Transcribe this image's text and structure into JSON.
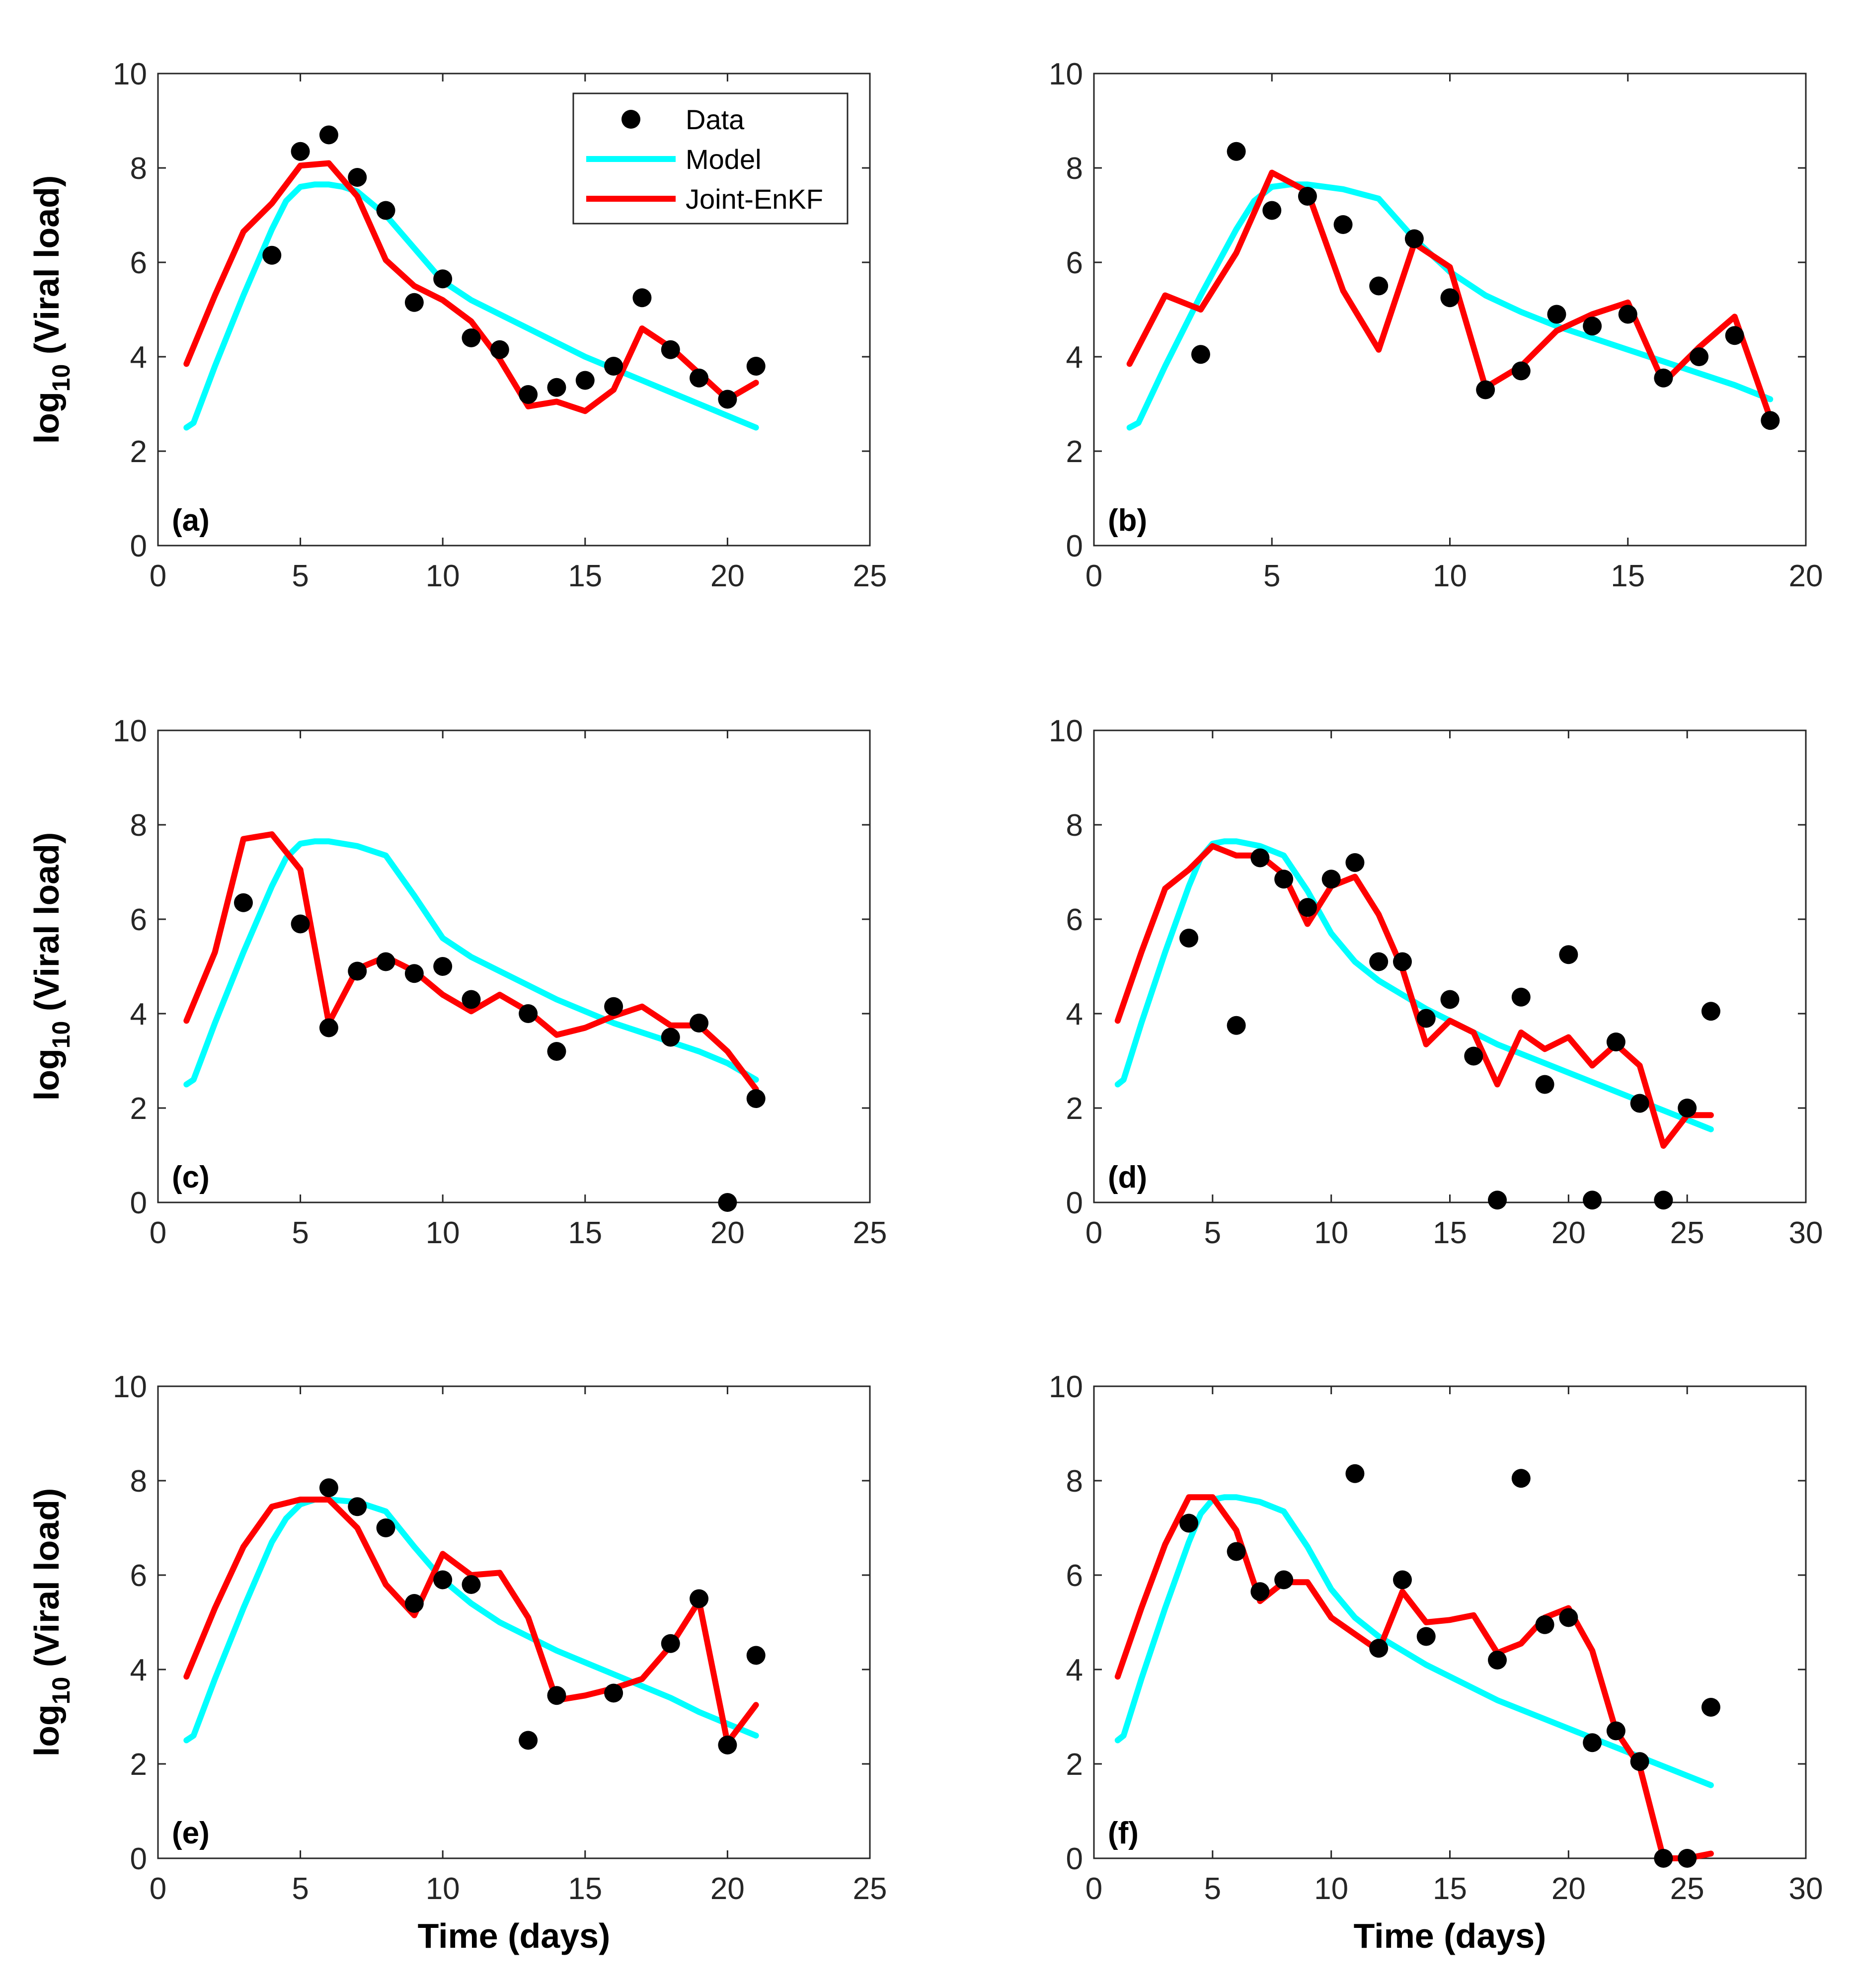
{
  "figure": {
    "legend": {
      "data_label": "Data",
      "model_label": "Model",
      "enkf_label": "Joint-EnKF"
    },
    "colors": {
      "data": "#000000",
      "model": "#00FFFF",
      "enkf": "#FF0000",
      "axes": "#262626"
    }
  },
  "chart_data": [
    {
      "type": "line",
      "panel_label": "(a)",
      "ylabel_prefix": "log",
      "ylabel_sub": "10",
      "ylabel_suffix": " (Viral load)",
      "xlabel": "",
      "xlim": [
        0,
        25
      ],
      "ylim": [
        0,
        10
      ],
      "xticks": [
        "0",
        "5",
        "10",
        "15",
        "20",
        "25"
      ],
      "yticks": [
        "0",
        "2",
        "4",
        "6",
        "8",
        "10"
      ],
      "legend": true,
      "series": [
        {
          "name": "Model",
          "x": [
            1,
            1.25,
            1.5,
            2,
            3,
            4,
            4.5,
            5,
            5.5,
            6,
            6.5,
            7,
            8,
            9,
            10,
            11,
            12,
            13,
            14,
            15,
            16,
            17,
            18,
            19,
            20,
            21
          ],
          "y": [
            2.5,
            2.6,
            3.0,
            3.8,
            5.3,
            6.7,
            7.3,
            7.6,
            7.65,
            7.65,
            7.6,
            7.5,
            7.0,
            6.3,
            5.6,
            5.2,
            4.9,
            4.6,
            4.3,
            4.0,
            3.75,
            3.5,
            3.25,
            3.0,
            2.75,
            2.5
          ]
        },
        {
          "name": "Joint-EnKF",
          "x": [
            1,
            2,
            3,
            4,
            5,
            6,
            7,
            8,
            9,
            10,
            11,
            12,
            13,
            14,
            15,
            16,
            17,
            18,
            19,
            20,
            21
          ],
          "y": [
            3.85,
            5.3,
            6.65,
            7.25,
            8.05,
            8.1,
            7.4,
            6.05,
            5.5,
            5.2,
            4.75,
            3.95,
            2.95,
            3.05,
            2.85,
            3.3,
            4.6,
            4.2,
            3.65,
            3.1,
            3.45
          ]
        },
        {
          "name": "Data",
          "x": [
            4,
            5,
            6,
            7,
            8,
            9,
            10,
            11,
            12,
            13,
            14,
            15,
            16,
            17,
            18,
            19,
            20,
            21
          ],
          "y": [
            6.15,
            8.35,
            8.7,
            7.8,
            7.1,
            5.15,
            5.65,
            4.4,
            4.15,
            3.2,
            3.35,
            3.5,
            3.8,
            5.25,
            4.15,
            3.55,
            3.1,
            3.8
          ]
        }
      ]
    },
    {
      "type": "line",
      "panel_label": "(b)",
      "ylabel_prefix": "",
      "ylabel_sub": "",
      "ylabel_suffix": "",
      "xlabel": "",
      "xlim": [
        0,
        20
      ],
      "ylim": [
        0,
        10
      ],
      "xticks": [
        "0",
        "5",
        "10",
        "15",
        "20"
      ],
      "yticks": [
        "0",
        "2",
        "4",
        "6",
        "8",
        "10"
      ],
      "legend": false,
      "series": [
        {
          "name": "Model",
          "x": [
            1,
            1.25,
            1.5,
            2,
            3,
            4,
            4.5,
            5,
            5.5,
            6,
            7,
            8,
            9,
            10,
            11,
            12,
            13,
            14,
            15,
            16,
            17,
            18,
            19
          ],
          "y": [
            2.5,
            2.6,
            3.0,
            3.8,
            5.3,
            6.7,
            7.3,
            7.6,
            7.65,
            7.65,
            7.55,
            7.35,
            6.5,
            5.8,
            5.3,
            4.95,
            4.65,
            4.4,
            4.15,
            3.9,
            3.65,
            3.4,
            3.1
          ]
        },
        {
          "name": "Joint-EnKF",
          "x": [
            1,
            2,
            3,
            4,
            5,
            6,
            7,
            8,
            9,
            10,
            11,
            12,
            13,
            14,
            15,
            16,
            17,
            18,
            19
          ],
          "y": [
            3.85,
            5.3,
            5.0,
            6.2,
            7.9,
            7.5,
            5.4,
            4.15,
            6.4,
            5.9,
            3.35,
            3.8,
            4.55,
            4.9,
            5.15,
            3.45,
            4.2,
            4.85,
            2.7
          ]
        },
        {
          "name": "Data",
          "x": [
            3,
            4,
            5,
            6,
            7,
            8,
            9,
            10,
            11,
            12,
            13,
            14,
            15,
            16,
            17,
            18,
            19
          ],
          "y": [
            4.05,
            8.35,
            7.1,
            7.4,
            6.8,
            5.5,
            6.5,
            5.25,
            3.3,
            3.7,
            4.9,
            4.65,
            4.9,
            3.55,
            4.0,
            4.45,
            2.65
          ]
        }
      ]
    },
    {
      "type": "line",
      "panel_label": "(c)",
      "ylabel_prefix": "log",
      "ylabel_sub": "10",
      "ylabel_suffix": " (Viral load)",
      "xlabel": "",
      "xlim": [
        0,
        25
      ],
      "ylim": [
        0,
        10
      ],
      "xticks": [
        "0",
        "5",
        "10",
        "15",
        "20",
        "25"
      ],
      "yticks": [
        "0",
        "2",
        "4",
        "6",
        "8",
        "10"
      ],
      "legend": false,
      "series": [
        {
          "name": "Model",
          "x": [
            1,
            1.25,
            1.5,
            2,
            3,
            4,
            4.5,
            5,
            5.5,
            6,
            7,
            8,
            9,
            10,
            11,
            12,
            13,
            14,
            15,
            16,
            17,
            18,
            19,
            20,
            21
          ],
          "y": [
            2.5,
            2.6,
            3.0,
            3.8,
            5.3,
            6.7,
            7.3,
            7.6,
            7.65,
            7.65,
            7.55,
            7.35,
            6.5,
            5.6,
            5.2,
            4.9,
            4.6,
            4.3,
            4.05,
            3.8,
            3.6,
            3.4,
            3.2,
            2.95,
            2.6
          ]
        },
        {
          "name": "Joint-EnKF",
          "x": [
            1,
            2,
            3,
            4,
            5,
            6,
            7,
            8,
            9,
            10,
            11,
            12,
            13,
            14,
            15,
            16,
            17,
            18,
            19,
            20,
            21
          ],
          "y": [
            3.85,
            5.3,
            7.7,
            7.8,
            7.05,
            3.8,
            4.95,
            5.2,
            4.9,
            4.4,
            4.05,
            4.4,
            4.05,
            3.55,
            3.7,
            3.95,
            4.15,
            3.75,
            3.75,
            3.2,
            2.4
          ]
        },
        {
          "name": "Data",
          "x": [
            3,
            5,
            6,
            7,
            8,
            9,
            10,
            11,
            13,
            14,
            16,
            18,
            19,
            20,
            21
          ],
          "y": [
            6.35,
            5.9,
            3.7,
            4.9,
            5.1,
            4.85,
            5.0,
            4.3,
            4.0,
            3.2,
            4.15,
            3.5,
            3.8,
            0.0,
            2.2
          ]
        }
      ]
    },
    {
      "type": "line",
      "panel_label": "(d)",
      "ylabel_prefix": "",
      "ylabel_sub": "",
      "ylabel_suffix": "",
      "xlabel": "",
      "xlim": [
        0,
        30
      ],
      "ylim": [
        0,
        10
      ],
      "xticks": [
        "0",
        "5",
        "10",
        "15",
        "20",
        "25",
        "30"
      ],
      "yticks": [
        "0",
        "2",
        "4",
        "6",
        "8",
        "10"
      ],
      "legend": false,
      "series": [
        {
          "name": "Model",
          "x": [
            1,
            1.25,
            1.5,
            2,
            3,
            4,
            4.5,
            5,
            5.5,
            6,
            7,
            8,
            9,
            10,
            11,
            12,
            13,
            14,
            15,
            16,
            17,
            18,
            19,
            20,
            21,
            22,
            23,
            24,
            25,
            26
          ],
          "y": [
            2.5,
            2.6,
            3.0,
            3.8,
            5.3,
            6.7,
            7.3,
            7.6,
            7.65,
            7.65,
            7.55,
            7.35,
            6.6,
            5.7,
            5.1,
            4.7,
            4.4,
            4.1,
            3.85,
            3.6,
            3.35,
            3.15,
            2.95,
            2.75,
            2.55,
            2.35,
            2.15,
            1.95,
            1.75,
            1.55
          ]
        },
        {
          "name": "Joint-EnKF",
          "x": [
            1,
            2,
            3,
            4,
            5,
            6,
            7,
            8,
            9,
            10,
            11,
            12,
            13,
            14,
            15,
            16,
            17,
            18,
            19,
            20,
            21,
            22,
            23,
            24,
            25,
            26
          ],
          "y": [
            3.85,
            5.3,
            6.65,
            7.05,
            7.55,
            7.35,
            7.35,
            6.95,
            5.9,
            6.7,
            6.9,
            6.1,
            4.95,
            3.35,
            3.85,
            3.6,
            2.5,
            3.6,
            3.25,
            3.5,
            2.9,
            3.35,
            2.9,
            1.2,
            1.85,
            1.85
          ]
        },
        {
          "name": "Data",
          "x": [
            4,
            6,
            7,
            8,
            9,
            10,
            11,
            12,
            13,
            14,
            15,
            16,
            17,
            18,
            19,
            20,
            21,
            22,
            23,
            24,
            25,
            26
          ],
          "y": [
            5.6,
            3.75,
            7.3,
            6.85,
            6.25,
            6.85,
            7.2,
            5.1,
            5.1,
            3.9,
            4.3,
            3.1,
            0.05,
            4.35,
            2.5,
            5.25,
            0.05,
            3.4,
            2.1,
            0.05,
            2.0,
            4.05
          ]
        }
      ]
    },
    {
      "type": "line",
      "panel_label": "(e)",
      "ylabel_prefix": "log",
      "ylabel_sub": "10",
      "ylabel_suffix": " (Viral load)",
      "xlabel": "Time (days)",
      "xlim": [
        0,
        25
      ],
      "ylim": [
        0,
        10
      ],
      "xticks": [
        "0",
        "5",
        "10",
        "15",
        "20",
        "25"
      ],
      "yticks": [
        "0",
        "2",
        "4",
        "6",
        "8",
        "10"
      ],
      "legend": false,
      "series": [
        {
          "name": "Model",
          "x": [
            1,
            1.25,
            1.5,
            2,
            3,
            4,
            4.5,
            5,
            5.5,
            6,
            7,
            8,
            9,
            10,
            11,
            12,
            13,
            14,
            15,
            16,
            17,
            18,
            19,
            20,
            21
          ],
          "y": [
            2.5,
            2.6,
            3.0,
            3.8,
            5.3,
            6.7,
            7.2,
            7.5,
            7.6,
            7.6,
            7.55,
            7.35,
            6.6,
            5.9,
            5.4,
            5.0,
            4.7,
            4.4,
            4.15,
            3.9,
            3.65,
            3.4,
            3.1,
            2.85,
            2.6
          ]
        },
        {
          "name": "Joint-EnKF",
          "x": [
            1,
            2,
            3,
            4,
            5,
            6,
            7,
            8,
            9,
            10,
            11,
            12,
            13,
            14,
            15,
            16,
            17,
            18,
            19,
            20,
            21
          ],
          "y": [
            3.85,
            5.3,
            6.6,
            7.45,
            7.6,
            7.6,
            7.0,
            5.8,
            5.15,
            6.45,
            6.0,
            6.05,
            5.1,
            3.35,
            3.45,
            3.6,
            3.8,
            4.5,
            5.45,
            2.45,
            3.25
          ]
        },
        {
          "name": "Data",
          "x": [
            6,
            7,
            8,
            9,
            10,
            11,
            13,
            14,
            16,
            18,
            19,
            20,
            21
          ],
          "y": [
            7.85,
            7.45,
            7.0,
            5.4,
            5.9,
            5.8,
            2.5,
            3.45,
            3.5,
            4.55,
            5.5,
            2.4,
            4.3
          ]
        }
      ]
    },
    {
      "type": "line",
      "panel_label": "(f)",
      "ylabel_prefix": "",
      "ylabel_sub": "",
      "ylabel_suffix": "",
      "xlabel": "Time (days)",
      "xlim": [
        0,
        30
      ],
      "ylim": [
        0,
        10
      ],
      "xticks": [
        "0",
        "5",
        "10",
        "15",
        "20",
        "25",
        "30"
      ],
      "yticks": [
        "0",
        "2",
        "4",
        "6",
        "8",
        "10"
      ],
      "legend": false,
      "series": [
        {
          "name": "Model",
          "x": [
            1,
            1.25,
            1.5,
            2,
            3,
            4,
            4.5,
            5,
            5.5,
            6,
            7,
            8,
            9,
            10,
            11,
            12,
            13,
            14,
            15,
            16,
            17,
            18,
            19,
            20,
            21,
            22,
            23,
            24,
            25,
            26
          ],
          "y": [
            2.5,
            2.6,
            3.0,
            3.8,
            5.3,
            6.7,
            7.3,
            7.6,
            7.65,
            7.65,
            7.55,
            7.35,
            6.6,
            5.7,
            5.1,
            4.7,
            4.4,
            4.1,
            3.85,
            3.6,
            3.35,
            3.15,
            2.95,
            2.75,
            2.55,
            2.35,
            2.15,
            1.95,
            1.75,
            1.55
          ]
        },
        {
          "name": "Joint-EnKF",
          "x": [
            1,
            2,
            3,
            4,
            5,
            6,
            7,
            8,
            9,
            10,
            11,
            12,
            13,
            14,
            15,
            16,
            17,
            18,
            19,
            20,
            21,
            22,
            23,
            24,
            25,
            26
          ],
          "y": [
            3.85,
            5.3,
            6.65,
            7.65,
            7.65,
            6.95,
            5.45,
            5.85,
            5.85,
            5.1,
            4.75,
            4.4,
            5.65,
            5.0,
            5.05,
            5.15,
            4.35,
            4.55,
            5.1,
            5.3,
            4.4,
            2.7,
            1.95,
            0.0,
            0.0,
            0.1
          ]
        },
        {
          "name": "Data",
          "x": [
            4,
            6,
            7,
            8,
            11,
            12,
            13,
            14,
            17,
            18,
            19,
            20,
            21,
            22,
            23,
            24,
            25,
            26
          ],
          "y": [
            7.1,
            6.5,
            5.65,
            5.9,
            8.15,
            4.45,
            5.9,
            4.7,
            4.2,
            8.05,
            4.95,
            5.1,
            2.45,
            2.7,
            2.05,
            0.0,
            0.0,
            3.2
          ]
        }
      ]
    }
  ]
}
